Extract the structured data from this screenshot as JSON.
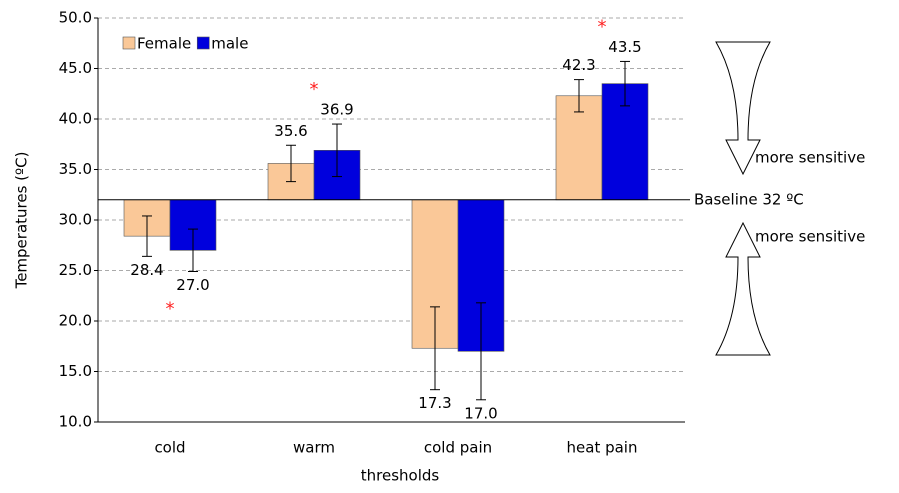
{
  "chart_data": {
    "type": "bar",
    "categories": [
      "cold",
      "warm",
      "cold pain",
      "heat pain"
    ],
    "series": [
      {
        "name": "Female",
        "color": "#fac898",
        "values": [
          28.4,
          35.6,
          17.3,
          42.3
        ],
        "value_labels": [
          "28.4",
          "35.6",
          "17.3",
          "42.3"
        ],
        "errors": [
          2.0,
          1.8,
          4.1,
          1.6
        ]
      },
      {
        "name": "male",
        "color": "#0000dd",
        "values": [
          27.0,
          36.9,
          17.0,
          43.5
        ],
        "value_labels": [
          "27.0",
          "36.9",
          "17.0",
          "43.5"
        ],
        "errors": [
          2.1,
          2.6,
          4.8,
          2.2
        ]
      }
    ],
    "baseline": 32,
    "baseline_label": "Baseline 32 ºC",
    "significance_mark": "*",
    "significant": [
      true,
      true,
      false,
      true
    ],
    "annotations": [
      "more sensitive",
      "more sensitive"
    ],
    "x_label": "thresholds",
    "y_label": "Temperatures (ºC)",
    "ylim": [
      10,
      50
    ],
    "yticks": [
      {
        "value": 10,
        "label": "10.0"
      },
      {
        "value": 15,
        "label": "15.0"
      },
      {
        "value": 20,
        "label": "20.0"
      },
      {
        "value": 25,
        "label": "25.0"
      },
      {
        "value": 30,
        "label": "30.0"
      },
      {
        "value": 35,
        "label": "35.0"
      },
      {
        "value": 40,
        "label": "40.0"
      },
      {
        "value": 45,
        "label": "45.0"
      },
      {
        "value": 50,
        "label": "50.0"
      }
    ],
    "grid": true,
    "legend": "top-left"
  }
}
